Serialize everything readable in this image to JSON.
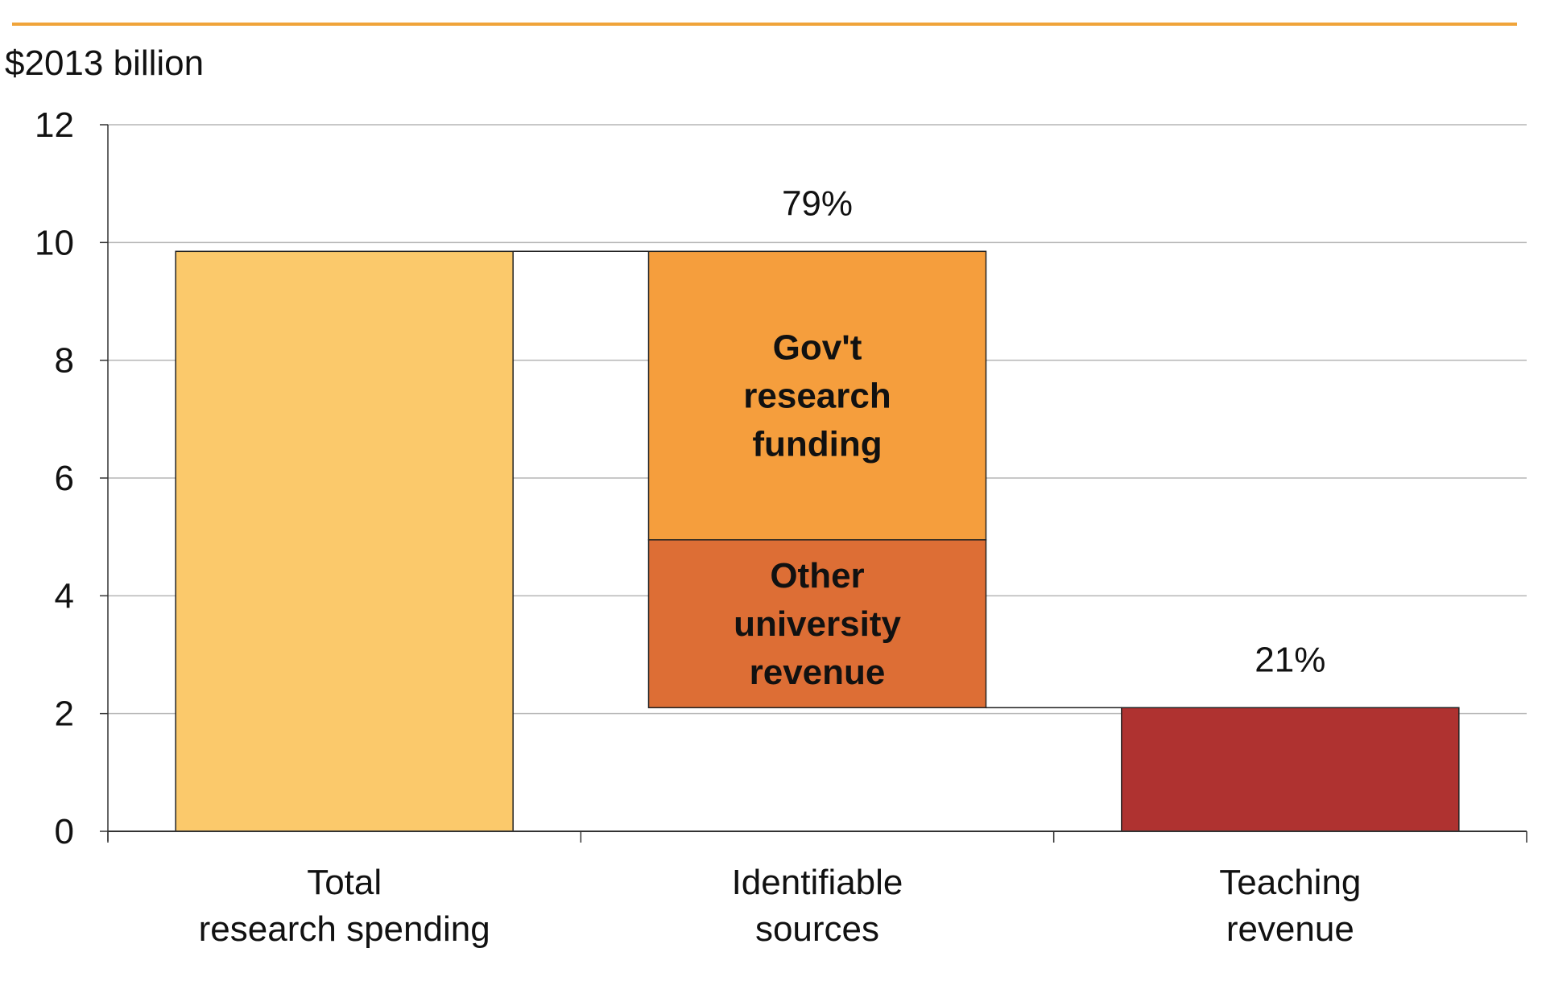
{
  "chart_data": {
    "type": "bar",
    "subtype": "waterfall",
    "ylabel": "$2013 billion",
    "ylim": [
      0,
      12
    ],
    "yticks": [
      0,
      2,
      4,
      6,
      8,
      10,
      12
    ],
    "grid": true,
    "categories": [
      "Total\nresearch spending",
      "Identifiable\nsources",
      "Teaching\nrevenue"
    ],
    "bars": [
      {
        "category": 0,
        "label": "",
        "bottom": 0,
        "top": 9.85,
        "color": "#FBC96B"
      },
      {
        "category": 1,
        "label": "Gov't\nresearch\nfunding",
        "bottom": 4.95,
        "top": 9.85,
        "color": "#F59E3D"
      },
      {
        "category": 1,
        "label": "Other\nuniversity\nrevenue",
        "bottom": 2.1,
        "top": 4.95,
        "color": "#DD6E35"
      },
      {
        "category": 2,
        "label": "",
        "bottom": 0,
        "top": 2.1,
        "color": "#AF3230"
      }
    ],
    "annotations": [
      {
        "category": 1,
        "text": "79%"
      },
      {
        "category": 2,
        "text": "21%"
      }
    ],
    "accent_line_color": "#F0A43A"
  }
}
